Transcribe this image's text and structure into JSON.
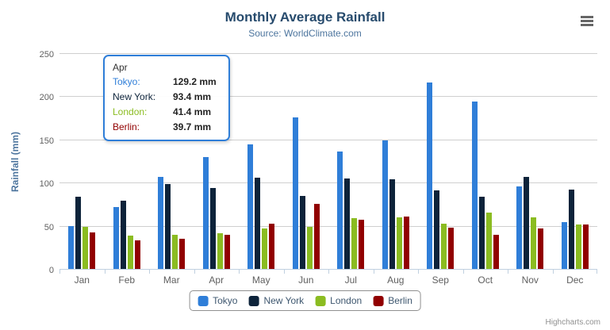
{
  "chart": {
    "title": "Monthly Average Rainfall",
    "subtitle": "Source: WorldClimate.com",
    "y_axis_title": "Rainfall (mm)",
    "credits": "Highcharts.com",
    "menu_icon": "hamburger-icon"
  },
  "chart_data": {
    "type": "bar",
    "title": "Monthly Average Rainfall",
    "subtitle": "Source: WorldClimate.com",
    "xlabel": "",
    "ylabel": "Rainfall (mm)",
    "ylim": [
      0,
      250
    ],
    "ytick_interval": 50,
    "grid": true,
    "legend_position": "bottom",
    "categories": [
      "Jan",
      "Feb",
      "Mar",
      "Apr",
      "May",
      "Jun",
      "Jul",
      "Aug",
      "Sep",
      "Oct",
      "Nov",
      "Dec"
    ],
    "series": [
      {
        "name": "Tokyo",
        "color": "#2f7ed8",
        "values": [
          49.9,
          71.5,
          106.4,
          129.2,
          144.0,
          176.0,
          135.6,
          148.5,
          216.4,
          194.1,
          95.6,
          54.4
        ]
      },
      {
        "name": "New York",
        "color": "#0d233a",
        "values": [
          83.6,
          78.8,
          98.5,
          93.4,
          106.0,
          84.5,
          105.0,
          104.3,
          91.2,
          83.5,
          106.6,
          92.3
        ]
      },
      {
        "name": "London",
        "color": "#8bbc21",
        "values": [
          48.9,
          38.8,
          39.3,
          41.4,
          47.0,
          48.3,
          59.0,
          59.6,
          52.4,
          65.2,
          59.3,
          51.2
        ]
      },
      {
        "name": "Berlin",
        "color": "#910000",
        "values": [
          42.4,
          33.2,
          34.5,
          39.7,
          52.6,
          75.5,
          57.4,
          60.4,
          47.6,
          39.1,
          46.8,
          51.1
        ]
      }
    ]
  },
  "tooltip": {
    "header": "Apr",
    "border_color": "#2f7ed8",
    "rows": [
      {
        "label": "Tokyo:",
        "value": "129.2 mm",
        "color": "#2f7ed8"
      },
      {
        "label": "New York:",
        "value": "93.4 mm",
        "color": "#0d233a"
      },
      {
        "label": "London:",
        "value": "41.4 mm",
        "color": "#8bbc21"
      },
      {
        "label": "Berlin:",
        "value": "39.7 mm",
        "color": "#910000"
      }
    ]
  }
}
